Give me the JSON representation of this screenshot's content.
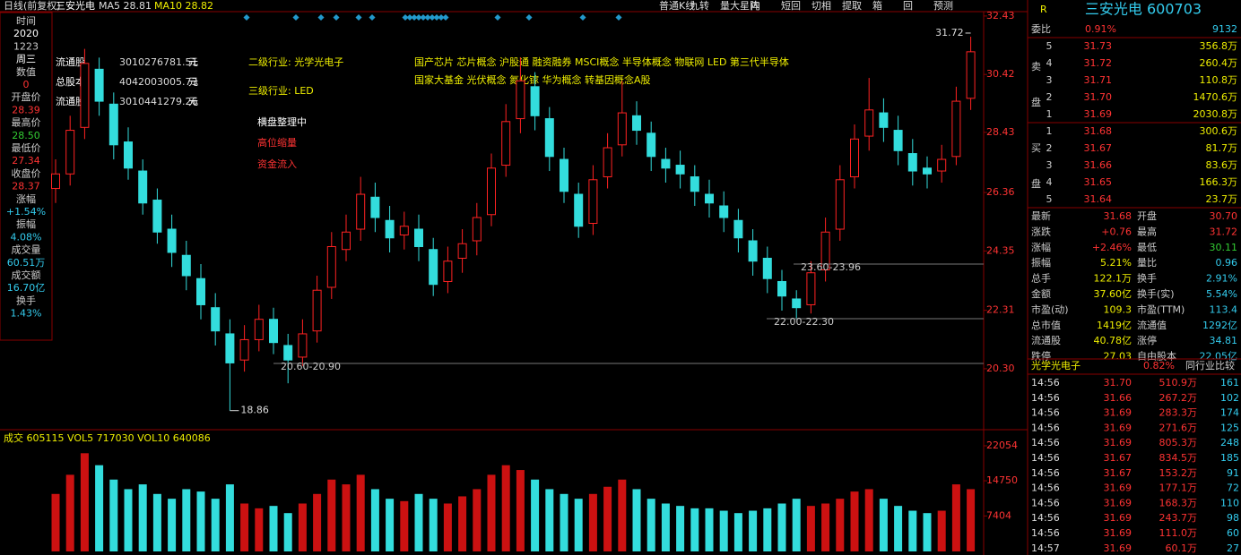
{
  "toolbar": {
    "period": "日线(前复权)",
    "stock": "三安光电",
    "ma5": "MA5 28.81",
    "ma10": "MA10 28.82",
    "buttons": [
      "普通K线",
      "九转",
      "量大星阵",
      "内",
      "短回",
      "切相",
      "提取",
      "箱",
      "回",
      "预测"
    ]
  },
  "info_column": [
    "时间",
    "2020",
    "1223",
    "周三",
    "数值",
    "0",
    "开盘价",
    "28.39",
    "最高价",
    "28.50",
    "最低价",
    "27.34",
    "收盘价",
    "28.37",
    "涨幅",
    "+1.54%",
    "振幅",
    "4.08%",
    "成交量",
    "60.51万",
    "成交额",
    "16.70亿",
    "换手",
    "1.43%"
  ],
  "capital_box": [
    [
      "流通股",
      "3010276781.51",
      "元"
    ],
    [
      "总股本",
      "4042003005.73",
      "元"
    ],
    [
      "流通股",
      "3010441279.26",
      "元"
    ]
  ],
  "industry": {
    "level2": "二级行业: 光学光电子",
    "level3": "三级行业: LED",
    "concepts": [
      "国产芯片 芯片概念 沪股通 融资融券 MSCI概念 半导体概念 物联网 LED 第三代半导体",
      "国家大基金 光伏概念 氮化镓 华为概念 转基因概念A股"
    ],
    "status": "横盘整理中",
    "signal1": "高位缩量",
    "signal2": "资金流入"
  },
  "price_levels": [
    "20.60-20.90",
    "22.00-22.30",
    "23.60-23.96"
  ],
  "chart_data": {
    "type": "candlestick",
    "ylim": [
      18.82,
      32.55
    ],
    "yticks": [
      32.43,
      30.42,
      28.43,
      26.36,
      24.35,
      22.31,
      {
        "value": 20.3,
        "label": "20.30"
      }
    ],
    "high_label": "31.72",
    "low_label": "18.86",
    "open": [
      26.5,
      27.0,
      28.6,
      30.6,
      29.4,
      28.1,
      27.1,
      26.1,
      25.1,
      24.2,
      23.4,
      22.4,
      21.5,
      20.6,
      21.3,
      22.0,
      21.1,
      20.7,
      21.6,
      23.1,
      24.4,
      25.1,
      26.2,
      25.4,
      24.9,
      25.1,
      24.4,
      23.3,
      24.1,
      24.7,
      25.6,
      27.3,
      28.9,
      30.0,
      28.9,
      27.5,
      26.3,
      25.3,
      26.9,
      28.0,
      29.0,
      28.4,
      27.5,
      27.3,
      26.9,
      26.3,
      25.9,
      25.4,
      24.7,
      24.1,
      23.3,
      22.7,
      22.5,
      23.7,
      25.1,
      26.9,
      28.3,
      29.1,
      28.5,
      27.7,
      27.2,
      27.1,
      27.6,
      29.6
    ],
    "high": [
      27.5,
      29.0,
      31.3,
      31.0,
      29.8,
      28.6,
      27.5,
      26.5,
      25.6,
      24.7,
      23.9,
      22.9,
      22.0,
      21.8,
      22.5,
      22.4,
      21.5,
      22.0,
      23.5,
      25.0,
      25.6,
      26.9,
      26.7,
      25.9,
      25.7,
      25.6,
      24.8,
      24.5,
      25.1,
      26.0,
      27.7,
      29.4,
      31.0,
      30.5,
      29.3,
      27.9,
      26.7,
      27.3,
      28.4,
      30.2,
      29.5,
      28.8,
      27.9,
      27.8,
      27.3,
      26.8,
      26.4,
      25.8,
      25.1,
      24.5,
      23.7,
      23.0,
      24.0,
      25.5,
      27.3,
      28.7,
      30.3,
      29.6,
      29.0,
      28.2,
      27.6,
      28.0,
      30.0,
      31.72
    ],
    "low": [
      26.0,
      26.6,
      28.2,
      29.0,
      27.5,
      26.8,
      25.6,
      24.6,
      23.8,
      23.0,
      22.0,
      21.1,
      18.86,
      20.2,
      20.9,
      20.8,
      19.8,
      20.4,
      21.2,
      22.7,
      24.0,
      24.7,
      25.0,
      24.3,
      24.4,
      24.0,
      22.8,
      22.9,
      23.6,
      24.2,
      25.2,
      26.9,
      28.4,
      28.5,
      27.1,
      26.0,
      24.8,
      24.9,
      26.5,
      27.6,
      28.0,
      27.1,
      26.7,
      26.5,
      25.9,
      25.5,
      25.0,
      24.3,
      23.5,
      22.9,
      22.3,
      22.0,
      22.2,
      23.3,
      24.7,
      26.5,
      27.8,
      28.1,
      27.3,
      26.6,
      26.5,
      26.7,
      27.3,
      29.2
    ],
    "close": [
      27.0,
      28.5,
      30.8,
      29.5,
      28.0,
      27.2,
      26.0,
      25.0,
      24.3,
      23.5,
      22.5,
      21.6,
      20.5,
      21.3,
      22.0,
      21.2,
      20.6,
      21.5,
      23.0,
      24.5,
      25.0,
      26.3,
      25.5,
      24.8,
      25.2,
      24.5,
      23.2,
      24.0,
      24.6,
      25.5,
      27.2,
      28.8,
      30.2,
      29.0,
      27.6,
      26.4,
      25.2,
      26.8,
      27.9,
      29.1,
      28.5,
      27.6,
      27.2,
      27.0,
      26.4,
      26.0,
      25.5,
      24.8,
      24.0,
      23.4,
      22.8,
      22.4,
      23.6,
      25.0,
      26.8,
      28.2,
      29.2,
      28.6,
      27.8,
      27.1,
      27.0,
      27.5,
      29.5,
      31.2
    ]
  },
  "volume_chart": {
    "type": "bar",
    "header": "成交 605115  VOL5 717030  VOL10 640086",
    "ylim": [
      0,
      22054
    ],
    "yticks": [
      22054,
      14750,
      7404
    ],
    "values": [
      12000,
      16000,
      20500,
      18000,
      15000,
      13000,
      14000,
      12000,
      11000,
      13000,
      12500,
      11000,
      14000,
      10000,
      9000,
      9500,
      8000,
      10000,
      12000,
      15000,
      14000,
      16000,
      13000,
      11000,
      10500,
      12000,
      11000,
      10000,
      11500,
      13000,
      16000,
      18000,
      17000,
      15000,
      13000,
      12000,
      11000,
      12000,
      13500,
      15000,
      13000,
      11000,
      10000,
      9500,
      9000,
      9000,
      8500,
      8000,
      8500,
      9000,
      10000,
      11000,
      9500,
      10000,
      11000,
      12500,
      13000,
      11000,
      9500,
      8500,
      8000,
      8500,
      14000,
      13000
    ]
  },
  "quote": {
    "marker": "R",
    "title": "三安光电 600703",
    "ratio": [
      "委比",
      "0.91%",
      "9132"
    ],
    "sell_label": [
      "卖",
      "盘"
    ],
    "buy_label": [
      "买",
      "盘"
    ],
    "sell": [
      [
        "5",
        "31.73",
        "356.8万"
      ],
      [
        "4",
        "31.72",
        "260.4万"
      ],
      [
        "3",
        "31.71",
        "110.8万"
      ],
      [
        "2",
        "31.70",
        "1470.6万"
      ],
      [
        "1",
        "31.69",
        "2030.8万"
      ]
    ],
    "buy": [
      [
        "1",
        "31.68",
        "300.6万"
      ],
      [
        "2",
        "31.67",
        "81.7万"
      ],
      [
        "3",
        "31.66",
        "83.6万"
      ],
      [
        "4",
        "31.65",
        "166.3万"
      ],
      [
        "5",
        "31.64",
        "23.7万"
      ]
    ],
    "stats": [
      [
        "最新",
        "31.68",
        "开盘",
        "30.70"
      ],
      [
        "涨跌",
        "+0.76",
        "最高",
        "31.72"
      ],
      [
        "涨幅",
        "+2.46%",
        "最低",
        "30.11"
      ],
      [
        "振幅",
        "5.21%",
        "量比",
        "0.96"
      ],
      [
        "总手",
        "122.1万",
        "换手",
        "2.91%"
      ],
      [
        "金额",
        "37.60亿",
        "换手(实)",
        "5.54%"
      ],
      [
        "市盈(动)",
        "109.3",
        "市盈(TTM)",
        "113.4"
      ],
      [
        "总市值",
        "1419亿",
        "流通值",
        "1292亿"
      ],
      [
        "流通股",
        "40.78亿",
        "涨停",
        "34.81"
      ],
      [
        "跌停",
        "27.03",
        "自由股本",
        "22.05亿"
      ]
    ],
    "sector": [
      "光学光电子",
      "0.82%",
      "同行业比较"
    ],
    "ticks": [
      [
        "14:56",
        "31.70",
        "510.9万",
        "161"
      ],
      [
        "14:56",
        "31.66",
        "267.2万",
        "102"
      ],
      [
        "14:56",
        "31.69",
        "283.3万",
        "174"
      ],
      [
        "14:56",
        "31.69",
        "271.6万",
        "125"
      ],
      [
        "14:56",
        "31.69",
        "805.3万",
        "248"
      ],
      [
        "14:56",
        "31.67",
        "834.5万",
        "185"
      ],
      [
        "14:56",
        "31.67",
        "153.2万",
        "91"
      ],
      [
        "14:56",
        "31.69",
        "177.1万",
        "72"
      ],
      [
        "14:56",
        "31.69",
        "168.3万",
        "110"
      ],
      [
        "14:56",
        "31.69",
        "243.7万",
        "98"
      ],
      [
        "14:56",
        "31.69",
        "111.0万",
        "60"
      ],
      [
        "14:57",
        "31.69",
        "60.1万",
        "27"
      ]
    ]
  }
}
